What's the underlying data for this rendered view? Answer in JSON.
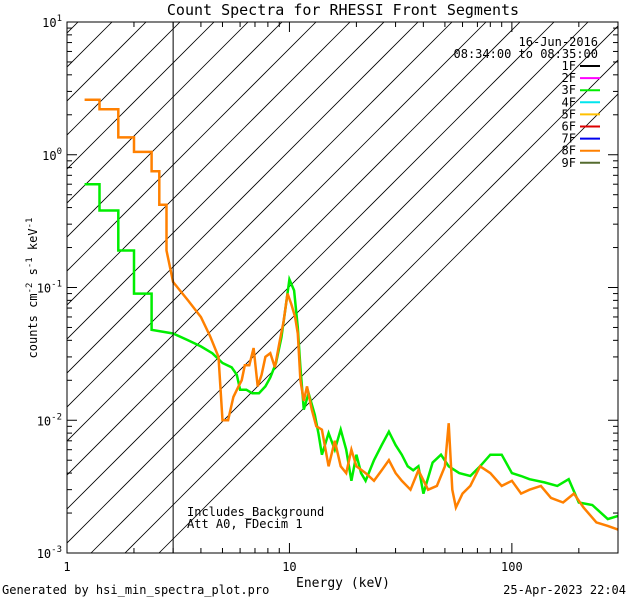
{
  "chart_data": {
    "type": "line",
    "title": "Count Spectra for RHESSI Front Segments",
    "xlabel": "Energy (keV)",
    "ylabel_parts": [
      "counts cm",
      "-2",
      " s",
      "-1",
      " keV",
      "-1"
    ],
    "xscale": "log",
    "yscale": "log",
    "xlim": [
      1,
      300
    ],
    "ylim": [
      0.001,
      10
    ],
    "x_ticks": [
      {
        "value": 1,
        "label": "1"
      },
      {
        "value": 10,
        "label": "10"
      },
      {
        "value": 100,
        "label": "100"
      }
    ],
    "y_ticks": [
      {
        "value": 10,
        "base": "10",
        "exp": "1"
      },
      {
        "value": 1,
        "base": "10",
        "exp": "0"
      },
      {
        "value": 0.1,
        "base": "10",
        "exp": "-1"
      },
      {
        "value": 0.01,
        "base": "10",
        "exp": "-2"
      },
      {
        "value": 0.001,
        "base": "10",
        "exp": "-3"
      }
    ],
    "hatched_region": {
      "x_from": 1,
      "x_to": 3
    },
    "date": "16-Jun-2016",
    "time_range": "08:34:00 to 08:35:00",
    "legend": [
      {
        "name": "1F",
        "color": "#000000"
      },
      {
        "name": "2F",
        "color": "#ff00ff"
      },
      {
        "name": "3F",
        "color": "#00ee00"
      },
      {
        "name": "4F",
        "color": "#00e5ee"
      },
      {
        "name": "5F",
        "color": "#ffc000"
      },
      {
        "name": "6F",
        "color": "#dd0000"
      },
      {
        "name": "7F",
        "color": "#0000ee"
      },
      {
        "name": "8F",
        "color": "#ff8000"
      },
      {
        "name": "9F",
        "color": "#556b2f"
      }
    ],
    "annotations": [
      "Includes_Background",
      "Att A0, FDecim 1"
    ],
    "series": [
      {
        "name": "3F",
        "color": "#00ee00",
        "points": [
          [
            1.2,
            0.6
          ],
          [
            1.4,
            0.6
          ],
          [
            1.4,
            0.38
          ],
          [
            1.7,
            0.38
          ],
          [
            1.7,
            0.19
          ],
          [
            2.0,
            0.19
          ],
          [
            2.0,
            0.09
          ],
          [
            2.4,
            0.09
          ],
          [
            2.4,
            0.048
          ],
          [
            3.0,
            0.045
          ],
          [
            3.5,
            0.04
          ],
          [
            4.0,
            0.036
          ],
          [
            4.5,
            0.032
          ],
          [
            5.0,
            0.027
          ],
          [
            5.5,
            0.025
          ],
          [
            5.8,
            0.022
          ],
          [
            6.0,
            0.017
          ],
          [
            6.4,
            0.017
          ],
          [
            6.8,
            0.016
          ],
          [
            7.3,
            0.016
          ],
          [
            7.8,
            0.018
          ],
          [
            8.2,
            0.021
          ],
          [
            8.7,
            0.027
          ],
          [
            9.2,
            0.042
          ],
          [
            9.6,
            0.07
          ],
          [
            10.0,
            0.115
          ],
          [
            10.5,
            0.095
          ],
          [
            10.9,
            0.05
          ],
          [
            11.2,
            0.025
          ],
          [
            11.6,
            0.012
          ],
          [
            12.2,
            0.016
          ],
          [
            13.0,
            0.011
          ],
          [
            13.5,
            0.008
          ],
          [
            14.0,
            0.0055
          ],
          [
            15.0,
            0.008
          ],
          [
            16.0,
            0.006
          ],
          [
            17.0,
            0.0085
          ],
          [
            18.0,
            0.006
          ],
          [
            19.0,
            0.0035
          ],
          [
            20.0,
            0.0055
          ],
          [
            21.0,
            0.004
          ],
          [
            22.0,
            0.0035
          ],
          [
            24.0,
            0.005
          ],
          [
            26.0,
            0.0065
          ],
          [
            28.0,
            0.0082
          ],
          [
            30.0,
            0.0065
          ],
          [
            32.0,
            0.0055
          ],
          [
            34.0,
            0.0045
          ],
          [
            36.0,
            0.0042
          ],
          [
            38.0,
            0.0045
          ],
          [
            40.0,
            0.0028
          ],
          [
            44.0,
            0.0048
          ],
          [
            48.0,
            0.0055
          ],
          [
            52.0,
            0.0045
          ],
          [
            58.0,
            0.004
          ],
          [
            65.0,
            0.0038
          ],
          [
            72.0,
            0.0045
          ],
          [
            80.0,
            0.0055
          ],
          [
            90.0,
            0.0055
          ],
          [
            100.0,
            0.004
          ],
          [
            110.0,
            0.0038
          ],
          [
            120.0,
            0.0036
          ],
          [
            140.0,
            0.0034
          ],
          [
            160.0,
            0.0032
          ],
          [
            180.0,
            0.0036
          ],
          [
            200.0,
            0.0024
          ],
          [
            230.0,
            0.0023
          ],
          [
            270.0,
            0.0018
          ],
          [
            300.0,
            0.0019
          ]
        ]
      },
      {
        "name": "8F",
        "color": "#ff8000",
        "points": [
          [
            1.2,
            2.6
          ],
          [
            1.4,
            2.6
          ],
          [
            1.4,
            2.2
          ],
          [
            1.7,
            2.2
          ],
          [
            1.7,
            1.35
          ],
          [
            2.0,
            1.35
          ],
          [
            2.0,
            1.05
          ],
          [
            2.4,
            1.05
          ],
          [
            2.4,
            0.75
          ],
          [
            2.6,
            0.75
          ],
          [
            2.6,
            0.42
          ],
          [
            2.8,
            0.42
          ],
          [
            2.8,
            0.19
          ],
          [
            3.0,
            0.11
          ],
          [
            3.5,
            0.08
          ],
          [
            4.0,
            0.06
          ],
          [
            4.4,
            0.043
          ],
          [
            4.8,
            0.03
          ],
          [
            5.0,
            0.01
          ],
          [
            5.3,
            0.01
          ],
          [
            5.6,
            0.015
          ],
          [
            5.9,
            0.018
          ],
          [
            6.1,
            0.02
          ],
          [
            6.3,
            0.026
          ],
          [
            6.6,
            0.026
          ],
          [
            6.9,
            0.035
          ],
          [
            7.2,
            0.018
          ],
          [
            7.5,
            0.022
          ],
          [
            7.8,
            0.03
          ],
          [
            8.2,
            0.032
          ],
          [
            8.6,
            0.025
          ],
          [
            9.0,
            0.038
          ],
          [
            9.4,
            0.055
          ],
          [
            9.8,
            0.09
          ],
          [
            10.2,
            0.075
          ],
          [
            10.6,
            0.06
          ],
          [
            10.9,
            0.045
          ],
          [
            11.2,
            0.02
          ],
          [
            11.6,
            0.014
          ],
          [
            12.0,
            0.018
          ],
          [
            12.6,
            0.012
          ],
          [
            13.2,
            0.009
          ],
          [
            14.0,
            0.0085
          ],
          [
            15.0,
            0.0045
          ],
          [
            16.0,
            0.007
          ],
          [
            17.0,
            0.0045
          ],
          [
            18.0,
            0.004
          ],
          [
            19.0,
            0.006
          ],
          [
            20.0,
            0.0045
          ],
          [
            22.0,
            0.004
          ],
          [
            24.0,
            0.0035
          ],
          [
            26.0,
            0.0042
          ],
          [
            28.0,
            0.005
          ],
          [
            30.0,
            0.004
          ],
          [
            32.0,
            0.0035
          ],
          [
            35.0,
            0.003
          ],
          [
            38.0,
            0.0042
          ],
          [
            42.0,
            0.003
          ],
          [
            46.0,
            0.0032
          ],
          [
            50.0,
            0.0045
          ],
          [
            52.0,
            0.0095
          ],
          [
            54.0,
            0.003
          ],
          [
            56.0,
            0.0022
          ],
          [
            60.0,
            0.0028
          ],
          [
            65.0,
            0.0032
          ],
          [
            72.0,
            0.0045
          ],
          [
            80.0,
            0.004
          ],
          [
            90.0,
            0.0032
          ],
          [
            100.0,
            0.0035
          ],
          [
            110.0,
            0.0028
          ],
          [
            120.0,
            0.003
          ],
          [
            135.0,
            0.0032
          ],
          [
            150.0,
            0.0026
          ],
          [
            170.0,
            0.0024
          ],
          [
            190.0,
            0.0028
          ],
          [
            210.0,
            0.0022
          ],
          [
            240.0,
            0.0017
          ],
          [
            270.0,
            0.0016
          ],
          [
            300.0,
            0.0015
          ]
        ]
      }
    ]
  },
  "footer": {
    "left": "Generated by hsi_min_spectra_plot.pro",
    "right": "25-Apr-2023 22:04"
  }
}
